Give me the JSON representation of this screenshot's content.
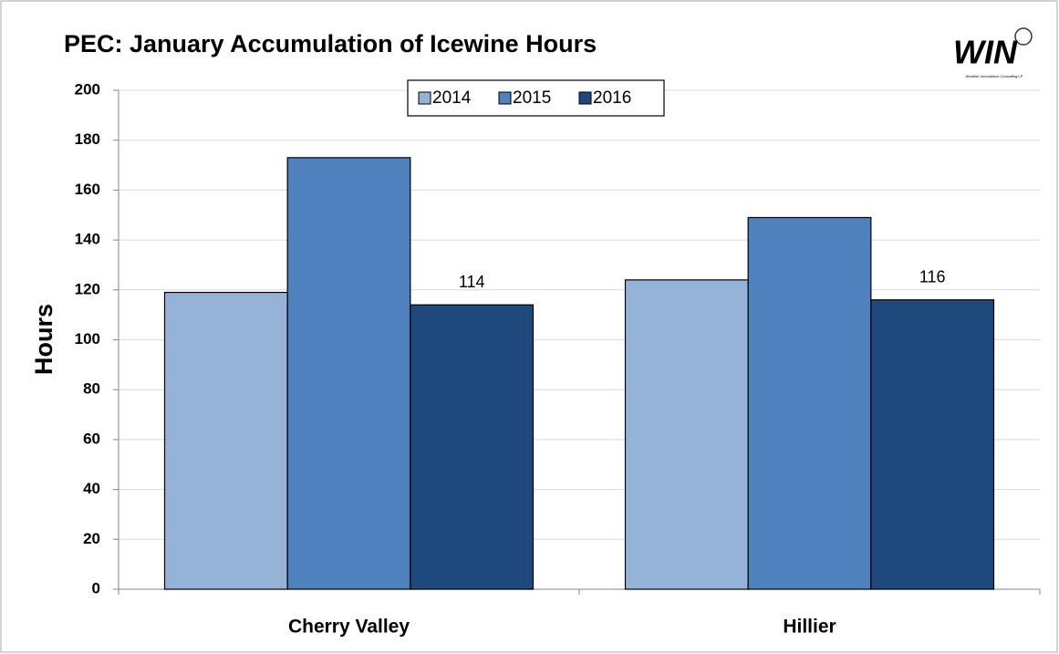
{
  "chart_data": {
    "type": "bar",
    "title": "PEC: January Accumulation of Icewine Hours",
    "logo": "WIN",
    "logo_subtitle": "Weather Innovations Consulting LP",
    "ylabel": "Hours",
    "categories": [
      "Cherry Valley",
      "Hillier"
    ],
    "series": [
      {
        "name": "2014",
        "color": "#95b3d7",
        "values": [
          119,
          124
        ]
      },
      {
        "name": "2015",
        "color": "#4f81bd",
        "values": [
          173,
          149
        ]
      },
      {
        "name": "2016",
        "color": "#1f497d",
        "values": [
          114,
          116
        ],
        "value_labels": [
          "114",
          "116"
        ]
      }
    ],
    "ylim": [
      0,
      200
    ],
    "yticks": [
      0,
      20,
      40,
      60,
      80,
      100,
      120,
      140,
      160,
      180,
      200
    ],
    "grid": true,
    "legend": "top"
  }
}
